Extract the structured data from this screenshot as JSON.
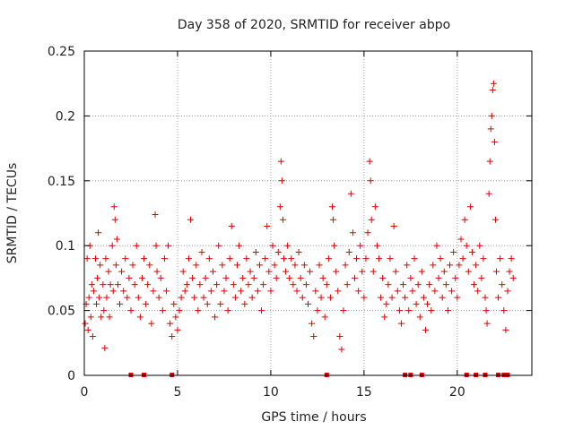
{
  "chart_data": {
    "type": "scatter",
    "title": "Day 358 of 2020, SRMTID for receiver abpo",
    "xlabel": "GPS time / hours",
    "ylabel": "SRMTID / TECUs",
    "xlim": [
      0,
      24
    ],
    "ylim": [
      0,
      0.25
    ],
    "x_ticks": [
      0,
      5,
      10,
      15,
      20
    ],
    "x_tick_labels": [
      "0",
      "5",
      "10",
      "15",
      "20"
    ],
    "y_ticks": [
      0,
      0.05,
      0.1,
      0.15,
      0.2,
      0.25
    ],
    "y_tick_labels": [
      "0",
      "0.05",
      "0.1",
      "0.15",
      "0.2",
      "0.25"
    ],
    "grid": true,
    "marker": "plus",
    "color": "#e00000",
    "series": [
      {
        "name": "SRMTID",
        "points": [
          [
            0.05,
            0.04
          ],
          [
            0.1,
            0.055
          ],
          [
            0.15,
            0.09
          ],
          [
            0.2,
            0.035
          ],
          [
            0.25,
            0.06
          ],
          [
            0.3,
            0.1
          ],
          [
            0.35,
            0.045
          ],
          [
            0.4,
            0.07
          ],
          [
            0.45,
            0.03
          ],
          [
            0.5,
            0.065
          ],
          [
            0.6,
            0.09
          ],
          [
            0.65,
            0.055
          ],
          [
            0.7,
            0.075
          ],
          [
            0.75,
            0.11
          ],
          [
            0.8,
            0.06
          ],
          [
            0.85,
            0.085
          ],
          [
            0.9,
            0.045
          ],
          [
            1.0,
            0.07
          ],
          [
            1.05,
            0.05
          ],
          [
            1.1,
            0.021
          ],
          [
            1.15,
            0.09
          ],
          [
            1.2,
            0.06
          ],
          [
            1.3,
            0.08
          ],
          [
            1.35,
            0.045
          ],
          [
            1.4,
            0.07
          ],
          [
            1.5,
            0.1
          ],
          [
            1.55,
            0.065
          ],
          [
            1.6,
            0.13
          ],
          [
            1.65,
            0.12
          ],
          [
            1.7,
            0.085
          ],
          [
            1.75,
            0.105
          ],
          [
            1.8,
            0.07
          ],
          [
            1.9,
            0.055
          ],
          [
            2.0,
            0.08
          ],
          [
            2.1,
            0.065
          ],
          [
            2.2,
            0.09
          ],
          [
            2.3,
            0.06
          ],
          [
            2.4,
            0.075
          ],
          [
            2.5,
            0.05
          ],
          [
            2.6,
            0.085
          ],
          [
            2.7,
            0.07
          ],
          [
            2.8,
            0.1
          ],
          [
            2.9,
            0.06
          ],
          [
            3.0,
            0.045
          ],
          [
            3.1,
            0.075
          ],
          [
            3.2,
            0.09
          ],
          [
            3.3,
            0.055
          ],
          [
            3.4,
            0.07
          ],
          [
            3.5,
            0.085
          ],
          [
            3.6,
            0.04
          ],
          [
            3.7,
            0.065
          ],
          [
            3.8,
            0.124
          ],
          [
            3.85,
            0.1
          ],
          [
            3.9,
            0.08
          ],
          [
            4.0,
            0.06
          ],
          [
            4.1,
            0.075
          ],
          [
            4.2,
            0.05
          ],
          [
            4.3,
            0.09
          ],
          [
            4.4,
            0.065
          ],
          [
            4.5,
            0.1
          ],
          [
            4.6,
            0.04
          ],
          [
            4.7,
            0.03
          ],
          [
            4.8,
            0.055
          ],
          [
            4.9,
            0.045
          ],
          [
            5.0,
            0.035
          ],
          [
            5.1,
            0.05
          ],
          [
            5.2,
            0.06
          ],
          [
            5.3,
            0.08
          ],
          [
            5.4,
            0.065
          ],
          [
            5.5,
            0.07
          ],
          [
            5.6,
            0.09
          ],
          [
            5.7,
            0.12
          ],
          [
            5.8,
            0.075
          ],
          [
            5.9,
            0.06
          ],
          [
            6.0,
            0.085
          ],
          [
            6.1,
            0.05
          ],
          [
            6.2,
            0.07
          ],
          [
            6.3,
            0.095
          ],
          [
            6.4,
            0.06
          ],
          [
            6.5,
            0.075
          ],
          [
            6.6,
            0.055
          ],
          [
            6.7,
            0.09
          ],
          [
            6.8,
            0.065
          ],
          [
            6.9,
            0.08
          ],
          [
            7.0,
            0.045
          ],
          [
            7.1,
            0.07
          ],
          [
            7.2,
            0.1
          ],
          [
            7.3,
            0.055
          ],
          [
            7.4,
            0.085
          ],
          [
            7.5,
            0.065
          ],
          [
            7.6,
            0.075
          ],
          [
            7.7,
            0.05
          ],
          [
            7.8,
            0.09
          ],
          [
            7.9,
            0.115
          ],
          [
            8.0,
            0.07
          ],
          [
            8.1,
            0.06
          ],
          [
            8.2,
            0.085
          ],
          [
            8.3,
            0.1
          ],
          [
            8.4,
            0.065
          ],
          [
            8.5,
            0.075
          ],
          [
            8.6,
            0.055
          ],
          [
            8.7,
            0.09
          ],
          [
            8.8,
            0.07
          ],
          [
            8.9,
            0.08
          ],
          [
            9.0,
            0.06
          ],
          [
            9.1,
            0.075
          ],
          [
            9.2,
            0.095
          ],
          [
            9.3,
            0.065
          ],
          [
            9.4,
            0.085
          ],
          [
            9.5,
            0.05
          ],
          [
            9.6,
            0.07
          ],
          [
            9.7,
            0.09
          ],
          [
            9.8,
            0.115
          ],
          [
            9.9,
            0.08
          ],
          [
            10.0,
            0.065
          ],
          [
            10.1,
            0.1
          ],
          [
            10.2,
            0.085
          ],
          [
            10.3,
            0.075
          ],
          [
            10.4,
            0.095
          ],
          [
            10.5,
            0.13
          ],
          [
            10.55,
            0.165
          ],
          [
            10.6,
            0.15
          ],
          [
            10.65,
            0.12
          ],
          [
            10.7,
            0.09
          ],
          [
            10.8,
            0.08
          ],
          [
            10.9,
            0.1
          ],
          [
            11.0,
            0.075
          ],
          [
            11.1,
            0.09
          ],
          [
            11.2,
            0.07
          ],
          [
            11.3,
            0.085
          ],
          [
            11.4,
            0.065
          ],
          [
            11.5,
            0.095
          ],
          [
            11.6,
            0.075
          ],
          [
            11.7,
            0.06
          ],
          [
            11.8,
            0.085
          ],
          [
            11.9,
            0.07
          ],
          [
            12.0,
            0.055
          ],
          [
            12.1,
            0.08
          ],
          [
            12.2,
            0.04
          ],
          [
            12.3,
            0.03
          ],
          [
            12.4,
            0.065
          ],
          [
            12.5,
            0.05
          ],
          [
            12.6,
            0.085
          ],
          [
            12.7,
            0.06
          ],
          [
            12.8,
            0.075
          ],
          [
            12.9,
            0.045
          ],
          [
            13.0,
            0.07
          ],
          [
            13.1,
            0.09
          ],
          [
            13.2,
            0.06
          ],
          [
            13.3,
            0.13
          ],
          [
            13.35,
            0.12
          ],
          [
            13.4,
            0.1
          ],
          [
            13.5,
            0.08
          ],
          [
            13.6,
            0.065
          ],
          [
            13.7,
            0.03
          ],
          [
            13.8,
            0.02
          ],
          [
            13.9,
            0.05
          ],
          [
            14.0,
            0.085
          ],
          [
            14.1,
            0.07
          ],
          [
            14.2,
            0.095
          ],
          [
            14.3,
            0.14
          ],
          [
            14.4,
            0.11
          ],
          [
            14.5,
            0.075
          ],
          [
            14.6,
            0.09
          ],
          [
            14.7,
            0.065
          ],
          [
            14.8,
            0.1
          ],
          [
            14.9,
            0.08
          ],
          [
            15.0,
            0.06
          ],
          [
            15.1,
            0.09
          ],
          [
            15.2,
            0.11
          ],
          [
            15.3,
            0.165
          ],
          [
            15.35,
            0.15
          ],
          [
            15.4,
            0.12
          ],
          [
            15.5,
            0.08
          ],
          [
            15.6,
            0.13
          ],
          [
            15.7,
            0.1
          ],
          [
            15.8,
            0.09
          ],
          [
            15.9,
            0.06
          ],
          [
            16.0,
            0.075
          ],
          [
            16.1,
            0.045
          ],
          [
            16.2,
            0.055
          ],
          [
            16.3,
            0.07
          ],
          [
            16.4,
            0.09
          ],
          [
            16.5,
            0.06
          ],
          [
            16.6,
            0.115
          ],
          [
            16.7,
            0.08
          ],
          [
            16.8,
            0.065
          ],
          [
            16.9,
            0.05
          ],
          [
            17.0,
            0.04
          ],
          [
            17.1,
            0.07
          ],
          [
            17.2,
            0.06
          ],
          [
            17.3,
            0.085
          ],
          [
            17.4,
            0.05
          ],
          [
            17.5,
            0.075
          ],
          [
            17.6,
            0.065
          ],
          [
            17.7,
            0.09
          ],
          [
            17.8,
            0.055
          ],
          [
            17.9,
            0.07
          ],
          [
            18.0,
            0.045
          ],
          [
            18.1,
            0.08
          ],
          [
            18.2,
            0.06
          ],
          [
            18.3,
            0.035
          ],
          [
            18.4,
            0.055
          ],
          [
            18.5,
            0.07
          ],
          [
            18.6,
            0.05
          ],
          [
            18.7,
            0.085
          ],
          [
            18.8,
            0.065
          ],
          [
            18.9,
            0.1
          ],
          [
            19.0,
            0.075
          ],
          [
            19.1,
            0.09
          ],
          [
            19.2,
            0.06
          ],
          [
            19.3,
            0.08
          ],
          [
            19.4,
            0.07
          ],
          [
            19.5,
            0.05
          ],
          [
            19.6,
            0.085
          ],
          [
            19.7,
            0.065
          ],
          [
            19.8,
            0.095
          ],
          [
            19.9,
            0.075
          ],
          [
            20.0,
            0.06
          ],
          [
            20.1,
            0.085
          ],
          [
            20.2,
            0.105
          ],
          [
            20.3,
            0.09
          ],
          [
            20.4,
            0.12
          ],
          [
            20.5,
            0.1
          ],
          [
            20.6,
            0.08
          ],
          [
            20.7,
            0.13
          ],
          [
            20.8,
            0.095
          ],
          [
            20.9,
            0.07
          ],
          [
            21.0,
            0.085
          ],
          [
            21.1,
            0.065
          ],
          [
            21.2,
            0.1
          ],
          [
            21.3,
            0.075
          ],
          [
            21.4,
            0.09
          ],
          [
            21.5,
            0.06
          ],
          [
            21.55,
            0.05
          ],
          [
            21.6,
            0.04
          ],
          [
            21.7,
            0.14
          ],
          [
            21.75,
            0.165
          ],
          [
            21.8,
            0.19
          ],
          [
            21.85,
            0.2
          ],
          [
            21.9,
            0.22
          ],
          [
            21.95,
            0.225
          ],
          [
            22.0,
            0.18
          ],
          [
            22.05,
            0.12
          ],
          [
            22.1,
            0.08
          ],
          [
            22.2,
            0.06
          ],
          [
            22.3,
            0.09
          ],
          [
            22.4,
            0.07
          ],
          [
            22.5,
            0.05
          ],
          [
            22.6,
            0.035
          ],
          [
            22.7,
            0.065
          ],
          [
            22.8,
            0.08
          ],
          [
            22.9,
            0.09
          ],
          [
            23.0,
            0.075
          ]
        ]
      }
    ],
    "baseline_markers": {
      "y": 0,
      "x": [
        2.5,
        3.2,
        4.7,
        13.0,
        17.2,
        17.5,
        18.1,
        20.5,
        21.0,
        21.5,
        22.2,
        22.5,
        22.7
      ]
    }
  }
}
